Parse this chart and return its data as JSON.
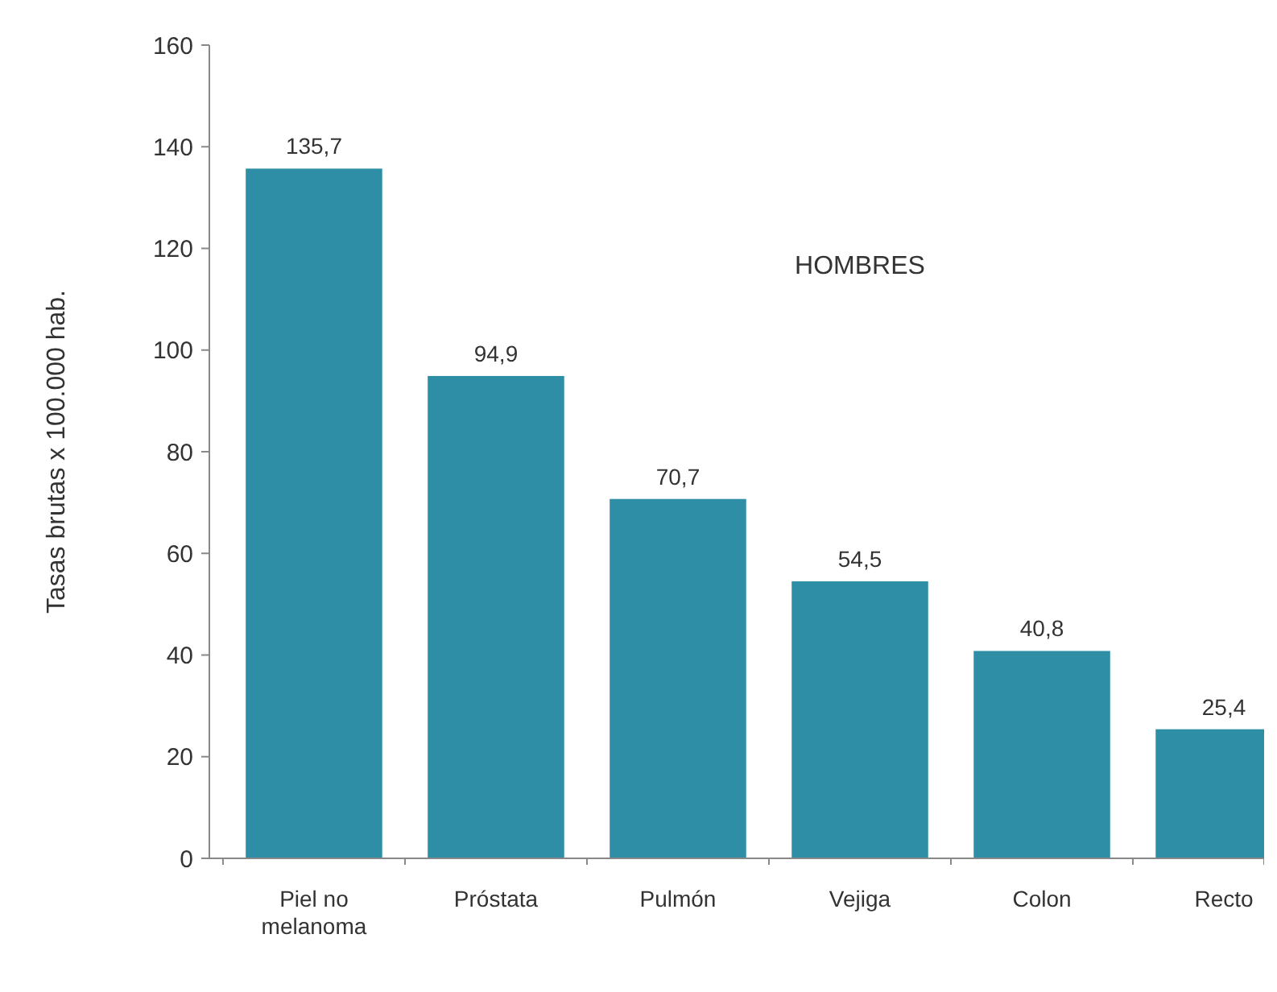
{
  "chart_data": {
    "type": "bar",
    "ylabel": "Tasas brutas x 100.000 hab.",
    "categories": [
      "Piel no melanoma",
      "Próstata",
      "Pulmón",
      "Vejiga",
      "Colon",
      "Recto"
    ],
    "values": [
      135.7,
      94.9,
      70.7,
      54.5,
      40.8,
      25.4
    ],
    "value_labels": [
      "135,7",
      "94,9",
      "70,7",
      "54,5",
      "40,8",
      "25,4"
    ],
    "color": "#2e8ea5",
    "ylim": [
      0,
      160
    ],
    "yticks": [
      0,
      20,
      40,
      60,
      80,
      100,
      120,
      140,
      160
    ],
    "annotations": [
      "HOMBRES"
    ]
  }
}
